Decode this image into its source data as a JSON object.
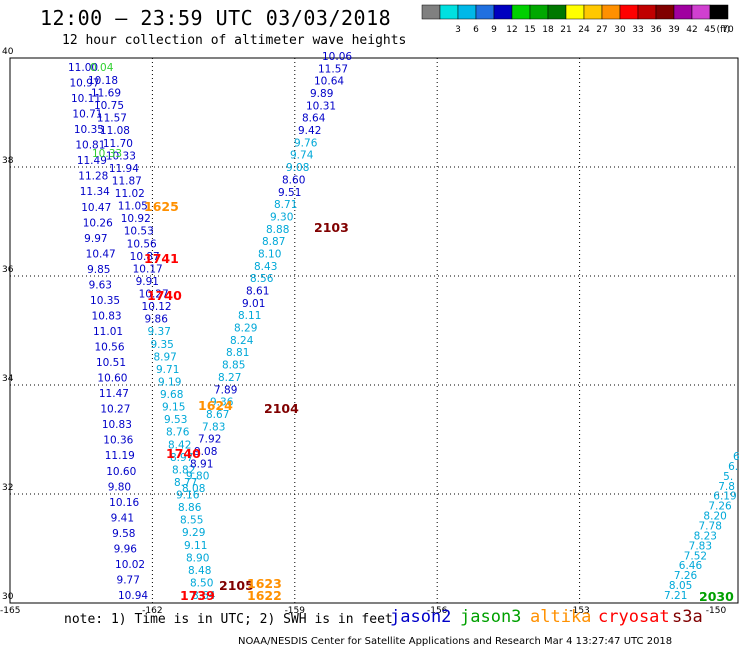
{
  "header": {
    "title": "12:00 – 23:59 UTC 03/03/2018",
    "subtitle": "12 hour collection of altimeter wave heights"
  },
  "color_scale": {
    "unit": "(ft)",
    "bins": [
      {
        "label": "",
        "color": "#808080"
      },
      {
        "label": "3",
        "color": "#00e0e0"
      },
      {
        "label": "6",
        "color": "#00b8e8"
      },
      {
        "label": "9",
        "color": "#2070e0"
      },
      {
        "label": "12",
        "color": "#0000c0"
      },
      {
        "label": "15",
        "color": "#00d000"
      },
      {
        "label": "18",
        "color": "#00a800"
      },
      {
        "label": "21",
        "color": "#007800"
      },
      {
        "label": "24",
        "color": "#ffff00"
      },
      {
        "label": "27",
        "color": "#ffc800"
      },
      {
        "label": "30",
        "color": "#ff9000"
      },
      {
        "label": "33",
        "color": "#ff0000"
      },
      {
        "label": "36",
        "color": "#c00000"
      },
      {
        "label": "39",
        "color": "#800000"
      },
      {
        "label": "42",
        "color": "#a000a0"
      },
      {
        "label": "45",
        "color": "#d040d0"
      },
      {
        "label": "70",
        "color": "#000000"
      }
    ]
  },
  "axes": {
    "lat_labels": [
      "40",
      "38",
      "36",
      "34",
      "32",
      "30"
    ],
    "lon_labels": [
      "-165",
      "-162",
      "-159",
      "-156",
      "-153",
      "-150"
    ]
  },
  "colors": {
    "jason2": "#0000c8",
    "jason3": "#00a000",
    "altika": "#ff9000",
    "cryosat": "#ff0000",
    "s3a": "#800000",
    "light": "#00a8d8",
    "light_green": "#30d030"
  },
  "tracks": {
    "track_a_left": [
      "11.00",
      "10.97",
      "10.11",
      "10.71",
      "10.35",
      "10.81",
      "11.49",
      "11.28",
      "11.34",
      "10.47",
      "10.26",
      "9.97",
      "10.47",
      "9.85",
      "9.63",
      "10.35",
      "10.83",
      "11.01",
      "10.56",
      "10.51",
      "10.60",
      "11.47",
      "10.27",
      "10.83",
      "10.36",
      "11.19",
      "10.60",
      "9.80",
      "10.16",
      "9.41",
      "9.58",
      "9.96",
      "10.02",
      "9.77",
      "10.94"
    ],
    "track_a_right": [
      "10.18",
      "11.69",
      "10.75",
      "11.57",
      "11.08",
      "11.70",
      "10.33",
      "11.94",
      "11.87",
      "11.02",
      "11.05",
      "10.92",
      "10.53",
      "10.56",
      "10.87",
      "10.17",
      "9.91",
      "10.27",
      "10.12",
      "9.86",
      "9.37",
      "9.35",
      "8.97",
      "9.71",
      "9.19",
      "9.68",
      "9.15",
      "9.53",
      "8.76",
      "8.42",
      "8.97",
      "8.82",
      "8.77",
      "9.16",
      "8.86",
      "8.55",
      "9.29",
      "9.11",
      "8.90",
      "8.48",
      "8.50",
      "8.64"
    ],
    "track_a_green": [
      "0.04",
      "10.33"
    ],
    "track_b": [
      "10.06",
      "11.57",
      "10.64",
      "9.89",
      "10.31",
      "8.64",
      "9.42",
      "9.76",
      "9.74",
      "9.08",
      "8.60",
      "9.51",
      "8.71",
      "9.30",
      "8.88",
      "8.87",
      "8.10",
      "8.43",
      "8.56",
      "8.61",
      "9.01",
      "8.11",
      "8.29",
      "8.24",
      "8.81",
      "8.85",
      "8.27",
      "7.89",
      "9.36",
      "8.67",
      "7.83",
      "7.92",
      "9.08",
      "8.91",
      "9.80",
      "8.08"
    ],
    "track_c": [
      "6.",
      "6.",
      "5.",
      "7.8",
      "6.19",
      "7.26",
      "8.20",
      "7.78",
      "8.23",
      "7.83",
      "7.52",
      "6.46",
      "7.26",
      "8.05",
      "7.21"
    ],
    "time_labels": [
      {
        "text": "1625",
        "sat": "altika"
      },
      {
        "text": "1741",
        "sat": "cryosat"
      },
      {
        "text": "1740",
        "sat": "cryosat"
      },
      {
        "text": "1624",
        "sat": "altika"
      },
      {
        "text": "1740",
        "sat": "cryosat"
      },
      {
        "text": "1739",
        "sat": "cryosat"
      },
      {
        "text": "2105",
        "sat": "s3a"
      },
      {
        "text": "1623",
        "sat": "altika"
      },
      {
        "text": "1622",
        "sat": "altika"
      },
      {
        "text": "2103",
        "sat": "s3a"
      },
      {
        "text": "2104",
        "sat": "s3a"
      },
      {
        "text": "2030",
        "sat": "jason3"
      }
    ]
  },
  "footer": {
    "note": "note: 1) Time is in UTC; 2) SWH is in feet",
    "credit": "NOAA/NESDIS Center for Satellite Applications and Research   Mar  4 13:27:47 UTC 2018",
    "satellites": [
      {
        "key": "jason2",
        "label": "jason2"
      },
      {
        "key": "jason3",
        "label": "jason3"
      },
      {
        "key": "altika",
        "label": "altika"
      },
      {
        "key": "cryosat",
        "label": "cryosat"
      },
      {
        "key": "s3a",
        "label": "s3a"
      }
    ]
  }
}
